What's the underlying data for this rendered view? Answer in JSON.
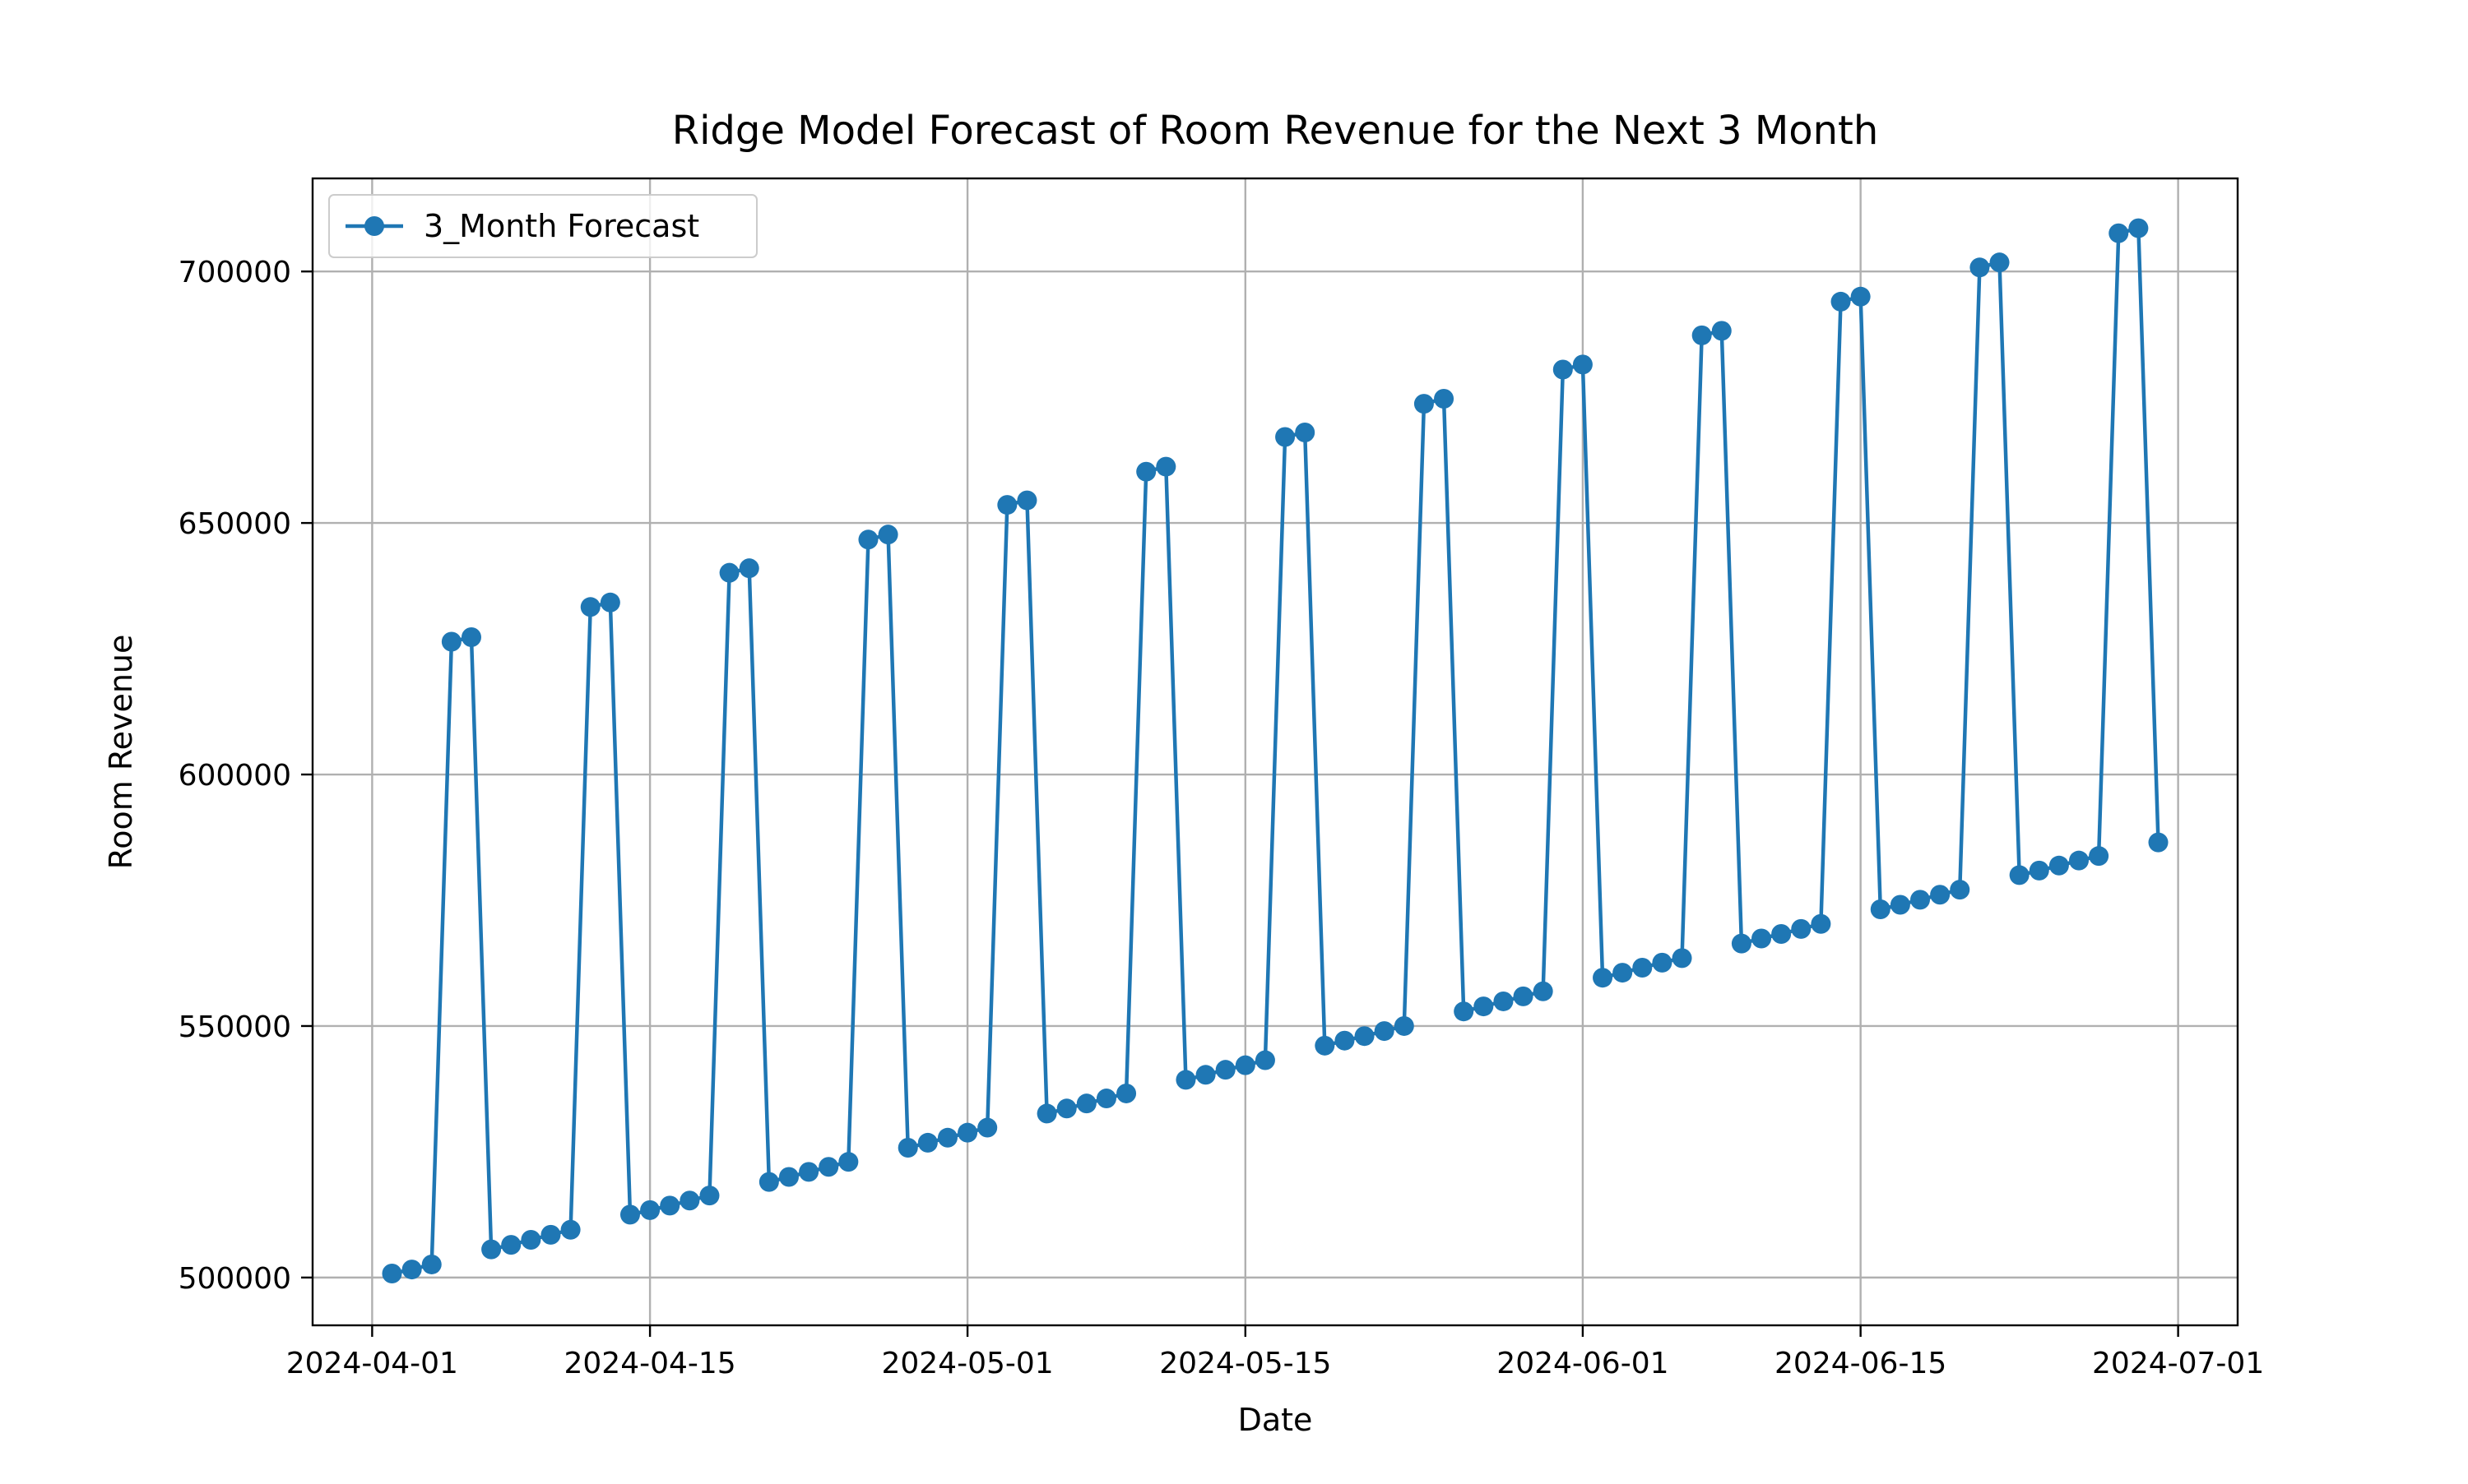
{
  "chart_data": {
    "type": "line",
    "title": "Ridge Model Forecast of Room Revenue for the Next 3 Month",
    "xlabel": "Date",
    "ylabel": "Room Revenue",
    "x_type": "date",
    "xlim": [
      "2024-03-29",
      "2024-07-04"
    ],
    "ylim": [
      490500,
      718500
    ],
    "x_ticks": [
      "2024-04-01",
      "2024-04-15",
      "2024-05-01",
      "2024-05-15",
      "2024-06-01",
      "2024-06-15",
      "2024-07-01"
    ],
    "y_ticks": [
      500000,
      550000,
      600000,
      650000,
      700000
    ],
    "grid": true,
    "legend": {
      "position": "upper-left",
      "entries": [
        "3_Month Forecast"
      ]
    },
    "colors": {
      "series": "#1f77b4"
    },
    "x": [
      "2024-04-02",
      "2024-04-03",
      "2024-04-04",
      "2024-04-05",
      "2024-04-06",
      "2024-04-07",
      "2024-04-08",
      "2024-04-09",
      "2024-04-10",
      "2024-04-11",
      "2024-04-12",
      "2024-04-13",
      "2024-04-14",
      "2024-04-15",
      "2024-04-16",
      "2024-04-17",
      "2024-04-18",
      "2024-04-19",
      "2024-04-20",
      "2024-04-21",
      "2024-04-22",
      "2024-04-23",
      "2024-04-24",
      "2024-04-25",
      "2024-04-26",
      "2024-04-27",
      "2024-04-28",
      "2024-04-29",
      "2024-04-30",
      "2024-05-01",
      "2024-05-02",
      "2024-05-03",
      "2024-05-04",
      "2024-05-05",
      "2024-05-06",
      "2024-05-07",
      "2024-05-08",
      "2024-05-09",
      "2024-05-10",
      "2024-05-11",
      "2024-05-12",
      "2024-05-13",
      "2024-05-14",
      "2024-05-15",
      "2024-05-16",
      "2024-05-17",
      "2024-05-18",
      "2024-05-19",
      "2024-05-20",
      "2024-05-21",
      "2024-05-22",
      "2024-05-23",
      "2024-05-24",
      "2024-05-25",
      "2024-05-26",
      "2024-05-27",
      "2024-05-28",
      "2024-05-29",
      "2024-05-30",
      "2024-05-31",
      "2024-06-01",
      "2024-06-02",
      "2024-06-03",
      "2024-06-04",
      "2024-06-05",
      "2024-06-06",
      "2024-06-07",
      "2024-06-08",
      "2024-06-09",
      "2024-06-10",
      "2024-06-11",
      "2024-06-12",
      "2024-06-13",
      "2024-06-14",
      "2024-06-15",
      "2024-06-16",
      "2024-06-17",
      "2024-06-18",
      "2024-06-19",
      "2024-06-20",
      "2024-06-21",
      "2024-06-22",
      "2024-06-23",
      "2024-06-24",
      "2024-06-25",
      "2024-06-26",
      "2024-06-27",
      "2024-06-28",
      "2024-06-29",
      "2024-06-30"
    ],
    "series": [
      {
        "name": "3_Month Forecast",
        "values": [
          500800,
          501600,
          502600,
          626400,
          627300,
          505600,
          506500,
          507500,
          508500,
          509500,
          633300,
          634200,
          512500,
          513400,
          514300,
          515300,
          516300,
          640100,
          641000,
          519000,
          520000,
          521000,
          522000,
          523000,
          646700,
          647700,
          525800,
          526800,
          527800,
          528800,
          529800,
          653600,
          654500,
          532600,
          533600,
          534600,
          535600,
          536600,
          660200,
          661200,
          539300,
          540300,
          541300,
          542200,
          543200,
          667100,
          668000,
          546100,
          547100,
          548000,
          549000,
          550000,
          673700,
          674700,
          552900,
          553900,
          554900,
          555900,
          556900,
          680500,
          681500,
          559600,
          560600,
          561600,
          562600,
          563500,
          687300,
          688200,
          566400,
          567400,
          568300,
          569300,
          570300,
          694000,
          695000,
          573200,
          574100,
          575100,
          576100,
          577100,
          700800,
          701800,
          580000,
          580900,
          581900,
          582900,
          583800,
          707600,
          708600,
          586500
        ]
      }
    ]
  }
}
